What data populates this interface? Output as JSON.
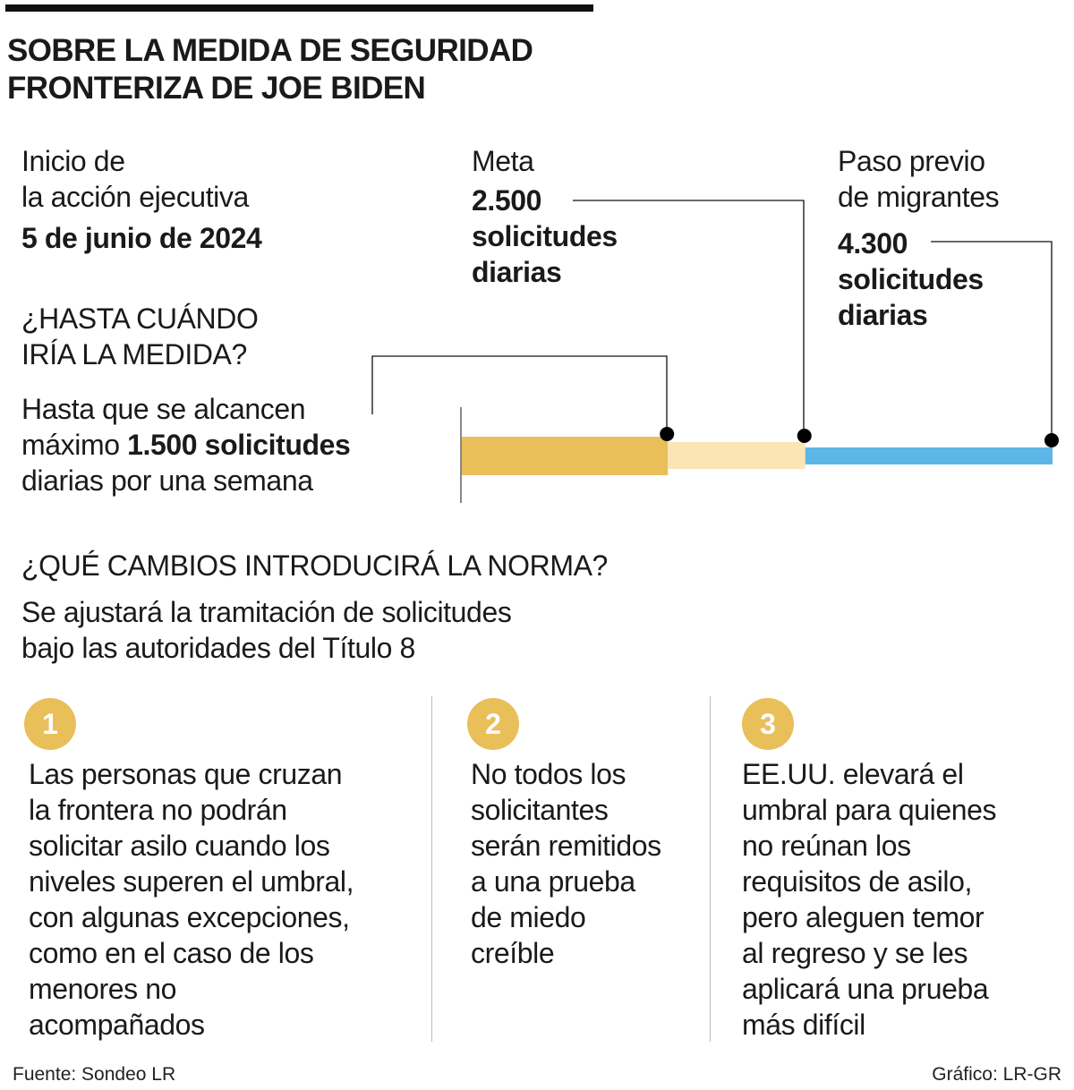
{
  "title": "SOBRE LA MEDIDA DE SEGURIDAD\nFRONTERIZA DE JOE BIDEN",
  "start": {
    "label": "Inicio de\nla acción ejecutiva",
    "date": "5 de junio de 2024"
  },
  "goal": {
    "label": "Meta",
    "value": "2.500\nsolicitudes\ndiarias"
  },
  "previous": {
    "label": "Paso previo\nde migrantes",
    "value": "4.300\nsolicitudes\ndiarias"
  },
  "until": {
    "heading": "¿HASTA CUÁNDO\nIRÍA LA MEDIDA?",
    "line1": "Hasta que se alcancen",
    "line2_prefix": "máximo ",
    "line2_bold": "1.500 solicitudes",
    "line3": "diarias por una semana"
  },
  "chart_data": {
    "type": "bar",
    "unit": "solicitudes diarias",
    "values": [
      1500,
      2500,
      4300
    ],
    "colors": [
      "#e9bf5a",
      "#fce5b5",
      "#5db6e6"
    ]
  },
  "changes": {
    "heading": "¿QUÉ CAMBIOS INTRODUCIRÁ LA NORMA?",
    "subheading": "Se ajustará la tramitación de solicitudes\nbajo las autoridades del Título 8"
  },
  "items": [
    {
      "number": "1",
      "text": "Las personas que cruzan\nla frontera no podrán\nsolicitar asilo cuando los\nniveles superen el umbral,\ncon algunas excepciones,\ncomo en el caso de los\nmenores no\nacompañados"
    },
    {
      "number": "2",
      "text": "No todos los\nsolicitantes\nserán remitidos\na una prueba\nde miedo\ncreíble"
    },
    {
      "number": "3",
      "text": "EE.UU. elevará el\numbral para quienes\nno reúnan los\nrequisitos de asilo,\npero aleguen temor\nal regreso y se les\naplicará una prueba\nmás difícil"
    }
  ],
  "footer": {
    "source": "Fuente: Sondeo LR",
    "credit": "Gráfico: LR-GR"
  }
}
